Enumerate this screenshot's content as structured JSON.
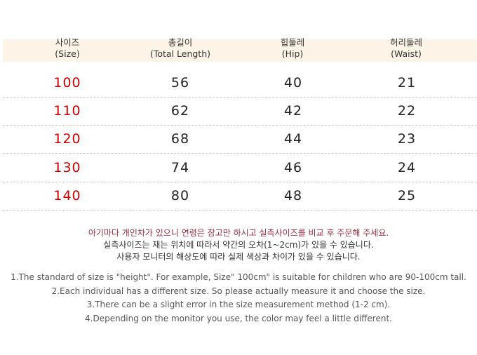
{
  "table": {
    "headers": [
      {
        "ko": "사이즈",
        "en": "(Size)"
      },
      {
        "ko": "총길이",
        "en": "(Total Length)"
      },
      {
        "ko": "힙둘레",
        "en": "(Hip)"
      },
      {
        "ko": "허리둘레",
        "en": "(Waist)"
      }
    ],
    "rows": [
      {
        "size": "100",
        "length": "56",
        "hip": "40",
        "waist": "21"
      },
      {
        "size": "110",
        "length": "62",
        "hip": "42",
        "waist": "22"
      },
      {
        "size": "120",
        "length": "68",
        "hip": "44",
        "waist": "23"
      },
      {
        "size": "130",
        "length": "74",
        "hip": "46",
        "waist": "24"
      },
      {
        "size": "140",
        "length": "80",
        "hip": "48",
        "waist": "25"
      }
    ]
  },
  "notes_ko": {
    "line1": "아기마다 개인차가 있으니 연령은 참고만 하시고 실측사이즈를 비교 후 주문해 주세요.",
    "line2": "실측사이즈는 재는 위치에 따라서 약간의  오차(1~2cm)가 있을 수 있습니다.",
    "line3": "사용자 모니터의 해상도에 따라 실제 색상과 차이가 있을 수 있습니다."
  },
  "notes_en": [
    "1.The standard of size is \"height\". For example,  Size\" 100cm\" is suitable for children who are 90-100cm tall.",
    "2.Each individual has a different size. So please actually measure it and choose the size.",
    "3.There can be a slight error in the size measurement method (1-2 cm).",
    "4.Depending on the monitor you use, the color may feel a little different."
  ],
  "colors": {
    "header_band": "#fdf3e7",
    "size_value": "#d40000",
    "note_highlight": "#9a2c40"
  }
}
